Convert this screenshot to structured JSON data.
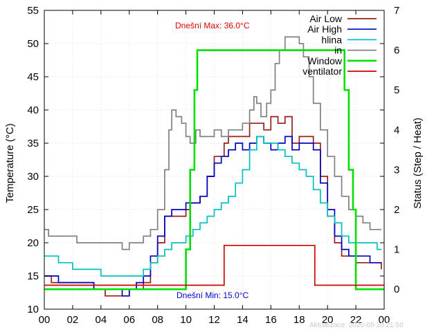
{
  "chart_data": {
    "type": "line",
    "xlabel": "",
    "ylabel": "Temperature (°C)",
    "y2label": "Status (Step / Heat)",
    "x_ticks": [
      "00",
      "02",
      "04",
      "06",
      "08",
      "10",
      "12",
      "14",
      "16",
      "18",
      "20",
      "22",
      "00"
    ],
    "xlim": [
      0,
      24
    ],
    "ylim": [
      10,
      55
    ],
    "y_ticks": [
      10,
      15,
      20,
      25,
      30,
      35,
      40,
      45,
      50,
      55
    ],
    "y2lim": [
      -0.5,
      7
    ],
    "y2_ticks": [
      0,
      1,
      2,
      3,
      4,
      5,
      6,
      7
    ],
    "grid": true,
    "legend_position": "top-right",
    "annotations": {
      "max_label": "Dnešní Max: 36.0°C",
      "min_label": "Dnešní Min: 15.0°C",
      "updated_label": "Aktualizace: 2020-05-20 21:50"
    },
    "series": [
      {
        "name": "Air Low",
        "color": "#9b1c1c",
        "axis": "y",
        "points": [
          [
            0,
            15
          ],
          [
            0.5,
            14
          ],
          [
            3,
            14
          ],
          [
            3.5,
            13
          ],
          [
            4.3,
            12
          ],
          [
            5.5,
            12
          ],
          [
            6,
            13
          ],
          [
            7,
            14
          ],
          [
            7.5,
            17
          ],
          [
            8,
            20
          ],
          [
            8.5,
            24
          ],
          [
            9,
            24
          ],
          [
            10,
            25
          ],
          [
            10.3,
            26
          ],
          [
            11,
            27
          ],
          [
            11.5,
            30
          ],
          [
            12,
            33
          ],
          [
            12.7,
            35
          ],
          [
            13,
            36
          ],
          [
            14,
            36
          ],
          [
            14.5,
            38
          ],
          [
            15,
            38
          ],
          [
            15.5,
            37
          ],
          [
            16,
            39
          ],
          [
            16.5,
            38
          ],
          [
            17,
            39
          ],
          [
            17.5,
            35
          ],
          [
            18,
            36
          ],
          [
            19,
            35
          ],
          [
            19.5,
            30
          ],
          [
            20,
            24
          ],
          [
            20.5,
            20
          ],
          [
            21,
            18
          ],
          [
            22,
            17
          ],
          [
            23,
            17
          ],
          [
            23.8,
            16
          ]
        ]
      },
      {
        "name": "Air High",
        "color": "#0000c0",
        "axis": "y",
        "points": [
          [
            0,
            15
          ],
          [
            1,
            14
          ],
          [
            3,
            14
          ],
          [
            3.5,
            13
          ],
          [
            5,
            13
          ],
          [
            5.5,
            12
          ],
          [
            6,
            13
          ],
          [
            6.5,
            14
          ],
          [
            7,
            15
          ],
          [
            7.5,
            18
          ],
          [
            8,
            21
          ],
          [
            8.5,
            24
          ],
          [
            9,
            25
          ],
          [
            9.5,
            25
          ],
          [
            10,
            26
          ],
          [
            10.5,
            26
          ],
          [
            11,
            27
          ],
          [
            11.5,
            30
          ],
          [
            12,
            32
          ],
          [
            12.5,
            33
          ],
          [
            13,
            34
          ],
          [
            13.5,
            35
          ],
          [
            14,
            34
          ],
          [
            14.5,
            35
          ],
          [
            15,
            36
          ],
          [
            15.5,
            35
          ],
          [
            16,
            34
          ],
          [
            16.5,
            35
          ],
          [
            17,
            36
          ],
          [
            17.5,
            34
          ],
          [
            18,
            35
          ],
          [
            19,
            34
          ],
          [
            19.5,
            29
          ],
          [
            20,
            25
          ],
          [
            20.5,
            21
          ],
          [
            21,
            19
          ],
          [
            21.5,
            18
          ],
          [
            22,
            18
          ],
          [
            23,
            17
          ],
          [
            23.8,
            17
          ]
        ]
      },
      {
        "name": "hlina",
        "color": "#00c0c0",
        "axis": "y",
        "points": [
          [
            0,
            18
          ],
          [
            1,
            17
          ],
          [
            2,
            16
          ],
          [
            3,
            16
          ],
          [
            3.5,
            16
          ],
          [
            4,
            15
          ],
          [
            6,
            15
          ],
          [
            6.5,
            15
          ],
          [
            7,
            16
          ],
          [
            7.5,
            17
          ],
          [
            8,
            18
          ],
          [
            8.5,
            19
          ],
          [
            9,
            20
          ],
          [
            10,
            21
          ],
          [
            10.5,
            22
          ],
          [
            11,
            23
          ],
          [
            11.5,
            24
          ],
          [
            12,
            25
          ],
          [
            12.5,
            26
          ],
          [
            13,
            27
          ],
          [
            13.5,
            29
          ],
          [
            14,
            31
          ],
          [
            14.5,
            34
          ],
          [
            15,
            36
          ],
          [
            15.5,
            35
          ],
          [
            16,
            35
          ],
          [
            16.5,
            34
          ],
          [
            17,
            33
          ],
          [
            17.5,
            32
          ],
          [
            18,
            31
          ],
          [
            18.5,
            30
          ],
          [
            19,
            28
          ],
          [
            19.5,
            26
          ],
          [
            20,
            24
          ],
          [
            20.5,
            23
          ],
          [
            21,
            21
          ],
          [
            21.5,
            20
          ],
          [
            22,
            20
          ],
          [
            23,
            20
          ],
          [
            23.5,
            19
          ],
          [
            23.8,
            19
          ]
        ]
      },
      {
        "name": "in",
        "color": "#808080",
        "axis": "y",
        "points": [
          [
            0,
            22
          ],
          [
            0.3,
            21
          ],
          [
            1,
            21
          ],
          [
            2,
            21
          ],
          [
            2.3,
            20
          ],
          [
            3,
            20
          ],
          [
            4,
            20
          ],
          [
            5,
            20
          ],
          [
            5.5,
            19
          ],
          [
            6,
            20
          ],
          [
            7,
            21
          ],
          [
            7.5,
            22
          ],
          [
            8,
            25
          ],
          [
            8.5,
            31
          ],
          [
            8.8,
            37
          ],
          [
            9,
            40
          ],
          [
            9.3,
            39
          ],
          [
            9.7,
            38
          ],
          [
            10,
            36
          ],
          [
            10.3,
            35
          ],
          [
            10.7,
            37
          ],
          [
            11,
            36
          ],
          [
            11.5,
            36
          ],
          [
            12,
            37
          ],
          [
            12.5,
            36
          ],
          [
            13,
            37
          ],
          [
            13.5,
            37
          ],
          [
            14,
            38
          ],
          [
            14.5,
            40
          ],
          [
            14.8,
            42
          ],
          [
            15,
            41
          ],
          [
            15.3,
            39
          ],
          [
            15.7,
            41
          ],
          [
            16,
            43
          ],
          [
            16.3,
            47
          ],
          [
            16.6,
            49
          ],
          [
            17,
            51
          ],
          [
            17.5,
            51
          ],
          [
            18,
            50
          ],
          [
            18.3,
            48
          ],
          [
            18.7,
            45
          ],
          [
            19,
            41
          ],
          [
            19.5,
            37
          ],
          [
            20,
            33
          ],
          [
            20.5,
            30
          ],
          [
            21,
            27
          ],
          [
            21.5,
            25
          ],
          [
            22,
            24
          ],
          [
            22.5,
            23
          ],
          [
            23,
            22
          ],
          [
            23.8,
            22
          ]
        ]
      },
      {
        "name": "Window",
        "color": "#00e000",
        "axis": "y2",
        "points": [
          [
            0,
            0
          ],
          [
            10,
            0
          ],
          [
            10,
            1
          ],
          [
            10.3,
            1
          ],
          [
            10.3,
            3
          ],
          [
            10.6,
            3
          ],
          [
            10.6,
            5
          ],
          [
            10.8,
            5
          ],
          [
            10.8,
            6
          ],
          [
            21.2,
            6
          ],
          [
            21.2,
            5
          ],
          [
            21.5,
            5
          ],
          [
            21.5,
            3
          ],
          [
            21.8,
            3
          ],
          [
            21.8,
            2
          ],
          [
            22,
            2
          ],
          [
            22,
            0
          ],
          [
            24,
            0
          ]
        ]
      },
      {
        "name": "ventilator",
        "color": "#d00000",
        "axis": "y2",
        "points": [
          [
            0,
            0.1
          ],
          [
            12.7,
            0.1
          ],
          [
            12.7,
            1.1
          ],
          [
            19.1,
            1.1
          ],
          [
            19.1,
            0.1
          ],
          [
            24,
            0.1
          ]
        ]
      }
    ]
  }
}
